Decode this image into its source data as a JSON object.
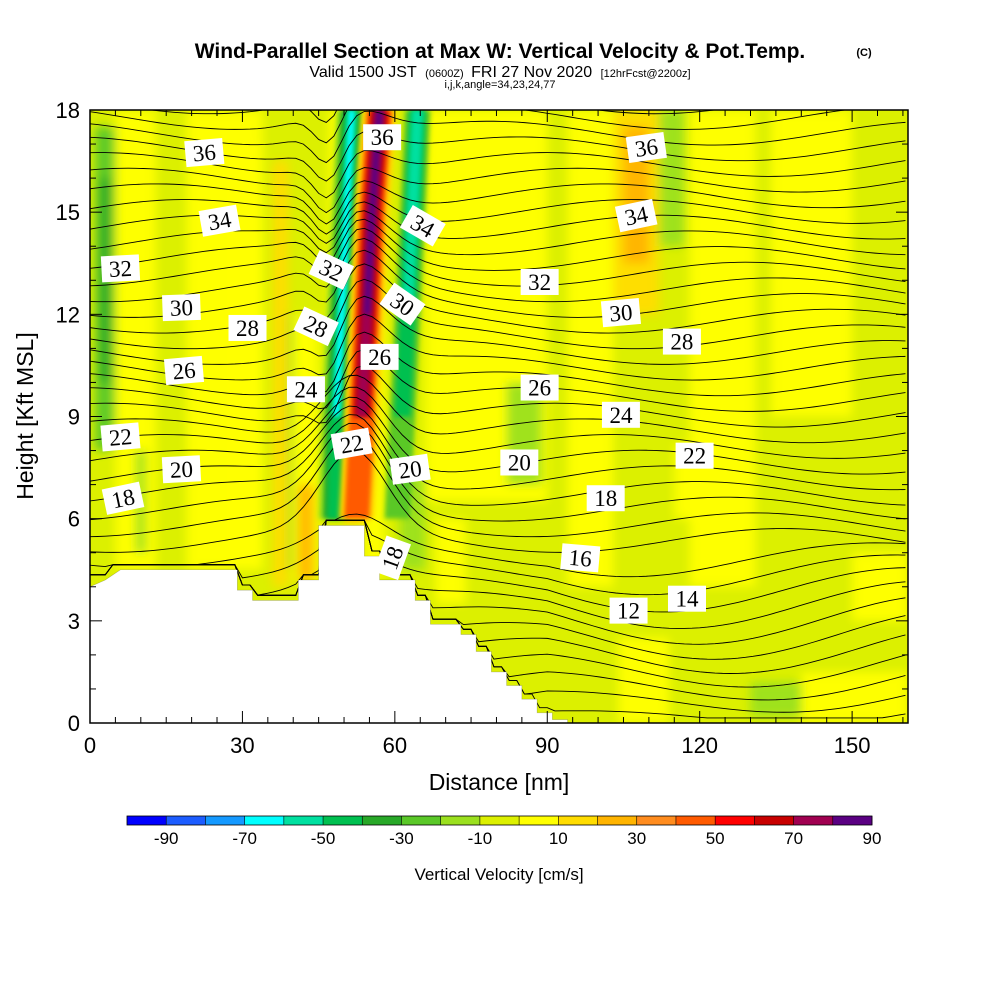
{
  "title_main": "Wind-Parallel Section at Max W: Vertical Velocity & Pot.Temp.",
  "copyright": "(C)",
  "subtitle_a": "Valid 1500 JST",
  "subtitle_b": "(0600Z)",
  "subtitle_c": "FRI 27 Nov 2020",
  "subtitle_d": "[12hrFcst@2200z]",
  "subtitle_e": "i,j,k,angle=34,23,24,77",
  "chart_data": {
    "type": "heatmap",
    "title": "Wind-Parallel Section at Max W: Vertical Velocity & Pot.Temp.",
    "xlabel": "Distance [nm]",
    "ylabel": "Height [Kft MSL]",
    "xlim": [
      0,
      161
    ],
    "ylim": [
      0,
      18
    ],
    "xticks": [
      0,
      30,
      60,
      90,
      120,
      150
    ],
    "yticks": [
      0,
      3,
      6,
      9,
      12,
      15,
      18
    ],
    "colorbar": {
      "label": "Vertical Velocity [cm/s]",
      "tick_labels": [
        -90,
        -70,
        -50,
        -30,
        -10,
        10,
        30,
        50,
        70,
        90
      ],
      "colors": [
        "#0000ff",
        "#1c5cff",
        "#1499ff",
        "#00ffff",
        "#00e0a0",
        "#00c050",
        "#28a828",
        "#5ac828",
        "#9be01e",
        "#dcf000",
        "#ffff00",
        "#ffdc00",
        "#ffb400",
        "#ff8c1e",
        "#ff5a00",
        "#ff0000",
        "#c80000",
        "#a00050",
        "#5a0082"
      ]
    },
    "velocity_field": {
      "background": 0,
      "cells": [
        {
          "x0": 1,
          "x1": 5,
          "y0": 8,
          "y1": 17.5,
          "w": -22
        },
        {
          "x0": 2,
          "x1": 4,
          "y0": 10,
          "y1": 16,
          "w": -33
        },
        {
          "x0": 5,
          "x1": 13,
          "y0": 4.5,
          "y1": 18,
          "w": 8
        },
        {
          "x0": 19,
          "x1": 34,
          "y0": 4.5,
          "y1": 18,
          "w": 5
        },
        {
          "x0": 27,
          "x1": 34,
          "y0": 5,
          "y1": 17,
          "w": 12
        },
        {
          "x0": 36,
          "x1": 39,
          "y0": 4,
          "y1": 16.5,
          "w": 22
        },
        {
          "x0": 40,
          "x1": 45,
          "y0": 4.2,
          "y1": 12,
          "w": 12
        },
        {
          "x0": 41,
          "x1": 44,
          "y0": 4.2,
          "y1": 7,
          "w": 32
        },
        {
          "x0": 47,
          "x1": 58,
          "y0": 7,
          "y1": 18,
          "w": 8
        },
        {
          "x0": 39,
          "x1": 40,
          "y0": 4.5,
          "y1": 12,
          "w": -15
        },
        {
          "x0": 66,
          "x1": 90,
          "y0": 6.5,
          "y1": 18,
          "w": 8
        },
        {
          "x0": 82,
          "x1": 89,
          "y0": 7,
          "y1": 10,
          "w": -6
        },
        {
          "x0": 94,
          "x1": 103,
          "y0": 4,
          "y1": 18,
          "w": 8
        },
        {
          "x0": 103,
          "x1": 112,
          "y0": 12,
          "y1": 18,
          "w": 15
        },
        {
          "x0": 105,
          "x1": 110,
          "y0": 13.5,
          "y1": 17.5,
          "w": 28
        },
        {
          "x0": 112,
          "x1": 117,
          "y0": 14,
          "y1": 18,
          "w": -12
        },
        {
          "x0": 118,
          "x1": 131,
          "y0": 4,
          "y1": 18,
          "w": 8
        },
        {
          "x0": 134,
          "x1": 150,
          "y0": 9,
          "y1": 18,
          "w": 8
        },
        {
          "x0": 150,
          "x1": 161,
          "y0": 3,
          "y1": 5,
          "w": 8
        },
        {
          "x0": 104,
          "x1": 114,
          "y0": 0,
          "y1": 2.5,
          "w": 8
        },
        {
          "x0": 140,
          "x1": 161,
          "y0": 0,
          "y1": 1.5,
          "w": 8
        },
        {
          "x0": 130,
          "x1": 140,
          "y0": 0.2,
          "y1": 1.2,
          "w": -14
        },
        {
          "x0": 115,
          "x1": 122,
          "y0": 6,
          "y1": 8.2,
          "w": 8
        },
        {
          "x0": 50,
          "x1": 54,
          "y0": 5.8,
          "y1": 9,
          "w": 22
        },
        {
          "x0": 54,
          "x1": 58,
          "y0": 4.3,
          "y1": 7,
          "w": 12
        },
        {
          "x0": 61,
          "x1": 66,
          "y0": 4.5,
          "y1": 7.5,
          "w": -6
        },
        {
          "x0": 68,
          "x1": 74,
          "y0": 3.5,
          "y1": 6,
          "w": 8
        },
        {
          "x0": 9,
          "x1": 11,
          "y0": 5,
          "y1": 8,
          "w": -6
        }
      ],
      "plume": {
        "updraft_path": [
          [
            52.5,
            6
          ],
          [
            53.5,
            9
          ],
          [
            54.5,
            12
          ],
          [
            55.5,
            15
          ],
          [
            57,
            18
          ]
        ],
        "downdraft_path": [
          [
            48,
            6
          ],
          [
            48.5,
            9
          ],
          [
            49.5,
            12
          ],
          [
            50.5,
            15
          ],
          [
            51.5,
            18
          ]
        ],
        "cyan_path": [
          [
            60.5,
            6
          ],
          [
            61.5,
            9
          ],
          [
            62.5,
            12
          ],
          [
            63.5,
            15
          ],
          [
            64.5,
            18
          ]
        ],
        "updraft_max": 90,
        "downdraft_min": -65,
        "cyan_min": -55
      }
    },
    "terrain_height": [
      [
        0,
        4.0
      ],
      [
        3,
        4.2
      ],
      [
        6,
        4.5
      ],
      [
        29,
        4.5
      ],
      [
        29,
        3.9
      ],
      [
        32,
        3.9
      ],
      [
        32,
        3.6
      ],
      [
        41,
        3.6
      ],
      [
        41,
        4.2
      ],
      [
        45,
        4.2
      ],
      [
        45,
        5.8
      ],
      [
        54,
        5.8
      ],
      [
        54,
        4.9
      ],
      [
        57,
        4.9
      ],
      [
        57,
        4.2
      ],
      [
        64,
        4.2
      ],
      [
        64,
        3.6
      ],
      [
        67,
        3.6
      ],
      [
        67,
        2.9
      ],
      [
        73,
        2.9
      ],
      [
        73,
        2.6
      ],
      [
        76,
        2.6
      ],
      [
        76,
        2.1
      ],
      [
        79,
        2.1
      ],
      [
        79,
        1.5
      ],
      [
        82,
        1.5
      ],
      [
        82,
        1.1
      ],
      [
        85,
        1.1
      ],
      [
        85,
        0.7
      ],
      [
        88,
        0.7
      ],
      [
        88,
        0.3
      ],
      [
        91,
        0.3
      ],
      [
        91,
        0.1
      ],
      [
        94,
        0.1
      ],
      [
        94,
        0
      ],
      [
        161,
        0
      ]
    ],
    "theta_contour_labels": [
      {
        "text": "36",
        "x": 22.5,
        "y": 16.75,
        "angle": -5
      },
      {
        "text": "36",
        "x": 57.5,
        "y": 17.2,
        "angle": 0
      },
      {
        "text": "36",
        "x": 109.5,
        "y": 16.9,
        "angle": -8
      },
      {
        "text": "34",
        "x": 25.5,
        "y": 14.75,
        "angle": -10
      },
      {
        "text": "34",
        "x": 65.5,
        "y": 14.6,
        "angle": 30
      },
      {
        "text": "34",
        "x": 107.5,
        "y": 14.9,
        "angle": -12
      },
      {
        "text": "32",
        "x": 6,
        "y": 13.35,
        "angle": -3
      },
      {
        "text": "32",
        "x": 47.5,
        "y": 13.3,
        "angle": 25
      },
      {
        "text": "32",
        "x": 88.5,
        "y": 12.95,
        "angle": 0
      },
      {
        "text": "30",
        "x": 18,
        "y": 12.2,
        "angle": -2
      },
      {
        "text": "30",
        "x": 61.5,
        "y": 12.3,
        "angle": 35
      },
      {
        "text": "30",
        "x": 104.5,
        "y": 12.05,
        "angle": -5
      },
      {
        "text": "28",
        "x": 31,
        "y": 11.6,
        "angle": 0
      },
      {
        "text": "28",
        "x": 44.5,
        "y": 11.65,
        "angle": 25
      },
      {
        "text": "28",
        "x": 116.5,
        "y": 11.2,
        "angle": 0
      },
      {
        "text": "26",
        "x": 18.5,
        "y": 10.35,
        "angle": -5
      },
      {
        "text": "26",
        "x": 57,
        "y": 10.75,
        "angle": 0
      },
      {
        "text": "26",
        "x": 88.5,
        "y": 9.85,
        "angle": 0
      },
      {
        "text": "24",
        "x": 42.5,
        "y": 9.8,
        "angle": 0
      },
      {
        "text": "24",
        "x": 104.5,
        "y": 9.05,
        "angle": 0
      },
      {
        "text": "22",
        "x": 6,
        "y": 8.4,
        "angle": -5
      },
      {
        "text": "22",
        "x": 51.5,
        "y": 8.2,
        "angle": -10
      },
      {
        "text": "22",
        "x": 119,
        "y": 7.85,
        "angle": 0
      },
      {
        "text": "20",
        "x": 18,
        "y": 7.45,
        "angle": -3
      },
      {
        "text": "20",
        "x": 63,
        "y": 7.45,
        "angle": -8
      },
      {
        "text": "20",
        "x": 84.5,
        "y": 7.65,
        "angle": 0
      },
      {
        "text": "18",
        "x": 6.5,
        "y": 6.6,
        "angle": -12
      },
      {
        "text": "18",
        "x": 101.5,
        "y": 6.6,
        "angle": 0
      },
      {
        "text": "18",
        "x": 59.5,
        "y": 4.85,
        "angle": -70
      },
      {
        "text": "16",
        "x": 96.5,
        "y": 4.85,
        "angle": 5
      },
      {
        "text": "14",
        "x": 117.5,
        "y": 3.65,
        "angle": 0
      },
      {
        "text": "12",
        "x": 106,
        "y": 3.3,
        "angle": 0
      }
    ]
  }
}
